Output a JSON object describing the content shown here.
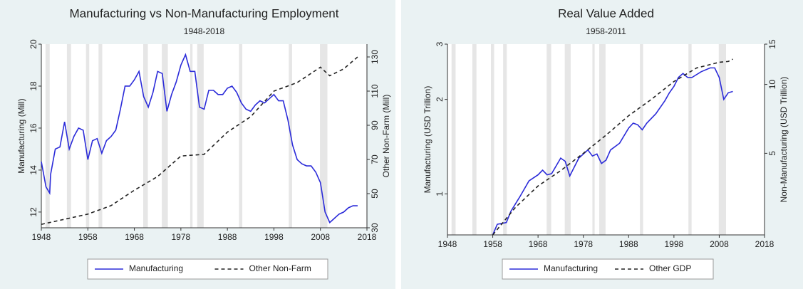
{
  "chart_data": [
    {
      "type": "line",
      "title": "Manufacturing vs Non-Manufacturing Employment",
      "subtitle": "1948-2018",
      "y_label": "Manufacturing (Mill)",
      "y2_label": "Other Non-Farm (Mill)",
      "xlim": [
        1948,
        2018
      ],
      "xticks": [
        1948,
        1958,
        1968,
        1978,
        1988,
        1998,
        2008,
        2018
      ],
      "ylim": [
        11.25,
        20
      ],
      "yticks": [
        12,
        14,
        16,
        18,
        20
      ],
      "y2lim": [
        30,
        137.5
      ],
      "y2ticks": [
        30,
        50,
        70,
        90,
        110,
        130
      ],
      "recessions": [
        [
          1948.9,
          1949.8
        ],
        [
          1953.5,
          1954.4
        ],
        [
          1957.6,
          1958.3
        ],
        [
          1960.3,
          1961.1
        ],
        [
          1969.9,
          1970.9
        ],
        [
          1973.9,
          1975.2
        ],
        [
          1980.0,
          1980.5
        ],
        [
          1981.5,
          1982.9
        ],
        [
          1990.5,
          1991.2
        ],
        [
          2001.2,
          2001.9
        ],
        [
          2007.9,
          2009.5
        ]
      ],
      "series": [
        {
          "name": "Manufacturing",
          "color": "#2b2bd9",
          "line_style": "solid",
          "x": [
            1948,
            1949,
            1949.8,
            1950,
            1951,
            1952,
            1953,
            1954,
            1955,
            1956,
            1957,
            1958,
            1959,
            1960,
            1961,
            1962,
            1963,
            1964,
            1965,
            1966,
            1967,
            1968,
            1969,
            1970,
            1971,
            1972,
            1973,
            1974,
            1975,
            1976,
            1977,
            1978,
            1979,
            1980,
            1981,
            1982,
            1983,
            1984,
            1985,
            1986,
            1987,
            1988,
            1989,
            1990,
            1991,
            1992,
            1993,
            1994,
            1995,
            1996,
            1997,
            1998,
            1999,
            2000,
            2001,
            2002,
            2003,
            2004,
            2005,
            2006,
            2007,
            2008,
            2009,
            2010,
            2011,
            2012,
            2013,
            2014,
            2015,
            2016
          ],
          "values": [
            14.4,
            13.2,
            12.9,
            13.8,
            15.0,
            15.1,
            16.3,
            15.0,
            15.6,
            16.0,
            15.9,
            14.5,
            15.4,
            15.5,
            14.8,
            15.4,
            15.6,
            15.9,
            16.9,
            18.0,
            18.0,
            18.3,
            18.7,
            17.5,
            17.0,
            17.7,
            18.7,
            18.6,
            16.8,
            17.6,
            18.2,
            19.0,
            19.5,
            18.7,
            18.7,
            17.0,
            16.9,
            17.8,
            17.8,
            17.6,
            17.6,
            17.9,
            18.0,
            17.7,
            17.2,
            16.9,
            16.8,
            17.1,
            17.3,
            17.2,
            17.4,
            17.6,
            17.3,
            17.3,
            16.4,
            15.2,
            14.5,
            14.3,
            14.2,
            14.2,
            13.9,
            13.4,
            12.0,
            11.5,
            11.7,
            11.9,
            12.0,
            12.2,
            12.3,
            12.3
          ]
        },
        {
          "name": "Other Non-Farm",
          "color": "#222222",
          "line_style": "dashed",
          "axis": "y2",
          "x": [
            1948,
            1953,
            1958,
            1963,
            1968,
            1973,
            1978,
            1983,
            1988,
            1993,
            1998,
            2003,
            2008,
            2010,
            2013,
            2016
          ],
          "values": [
            32,
            35,
            38,
            43,
            52,
            60,
            72,
            73,
            86,
            95,
            110,
            115,
            124,
            119,
            123,
            130
          ]
        }
      ]
    },
    {
      "type": "line",
      "title": "Real Value Added",
      "subtitle": "1958-2011",
      "y_label": "Manufacturing (USD Trillion)",
      "y2_label": "Non-Manufacturing (USD Trillion)",
      "log_scale": true,
      "xlim": [
        1948,
        2018
      ],
      "xticks": [
        1948,
        1958,
        1968,
        1978,
        1988,
        1998,
        2008,
        2018
      ],
      "ylim": [
        0.74,
        3
      ],
      "yticks": [
        1,
        2,
        3
      ],
      "y2lim": [
        2.2,
        15
      ],
      "y2ticks": [
        5,
        10,
        15
      ],
      "recessions": [
        [
          1948.9,
          1949.8
        ],
        [
          1953.5,
          1954.4
        ],
        [
          1957.6,
          1958.3
        ],
        [
          1960.3,
          1961.1
        ],
        [
          1969.9,
          1970.9
        ],
        [
          1973.9,
          1975.2
        ],
        [
          1980.0,
          1980.5
        ],
        [
          1981.5,
          1982.9
        ],
        [
          1990.5,
          1991.2
        ],
        [
          2001.2,
          2001.9
        ],
        [
          2007.9,
          2009.5
        ]
      ],
      "series": [
        {
          "name": "Manufacturing",
          "color": "#2b2bd9",
          "line_style": "solid",
          "x": [
            1958,
            1959,
            1961,
            1962,
            1964,
            1966,
            1968,
            1969,
            1970,
            1971,
            1973,
            1974,
            1975,
            1977,
            1979,
            1980,
            1981,
            1982,
            1983,
            1984,
            1986,
            1988,
            1989,
            1990,
            1991,
            1992,
            1994,
            1996,
            1997,
            1998,
            1999,
            2000,
            2001,
            2002,
            2004,
            2006,
            2007,
            2008,
            2009,
            2010,
            2011
          ],
          "values": [
            0.74,
            0.8,
            0.81,
            0.88,
            0.98,
            1.1,
            1.15,
            1.19,
            1.15,
            1.16,
            1.3,
            1.27,
            1.14,
            1.3,
            1.38,
            1.32,
            1.34,
            1.25,
            1.28,
            1.38,
            1.45,
            1.62,
            1.68,
            1.66,
            1.6,
            1.68,
            1.8,
            1.98,
            2.1,
            2.2,
            2.35,
            2.42,
            2.35,
            2.35,
            2.45,
            2.52,
            2.52,
            2.35,
            2.0,
            2.1,
            2.12
          ]
        },
        {
          "name": "Other GDP",
          "color": "#222222",
          "line_style": "dashed",
          "axis": "y2",
          "x": [
            1958,
            1963,
            1968,
            1973,
            1978,
            1983,
            1988,
            1993,
            1998,
            2003,
            2008,
            2010,
            2011
          ],
          "values": [
            2.2,
            2.9,
            3.6,
            4.2,
            5.0,
            6.0,
            7.3,
            8.6,
            10.3,
            11.8,
            12.5,
            12.6,
            12.9
          ]
        }
      ]
    }
  ]
}
